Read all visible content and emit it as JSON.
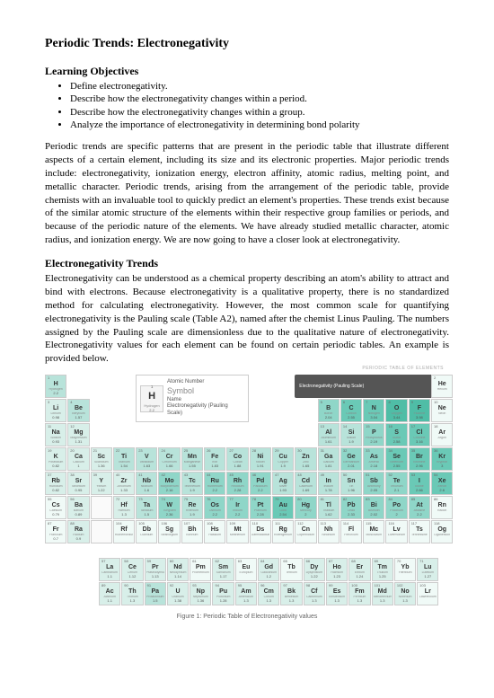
{
  "title": "Periodic Trends: Electronegativity",
  "objectives_heading": "Learning Objectives",
  "objectives": [
    "Define electronegativity.",
    "Describe how the electronegativity changes within a period.",
    "Describe how the electronegativity changes within a group.",
    "Analyze the importance of electronegativity in determining bond polarity"
  ],
  "para1": "Periodic trends are specific patterns that are present in the periodic table that illustrate different aspects of a certain element, including its size and its electronic properties. Major periodic trends include: electronegativity, ionization energy, electron affinity, atomic radius, melting point, and metallic character. Periodic trends, arising from the arrangement of the periodic table, provide chemists with an invaluable tool to quickly predict an element's properties. These trends exist because of the similar atomic structure of the elements within their respective group families or periods, and because of the periodic nature of the elements. We have already studied metallic character, atomic radius, and ionization energy. We are now going to have a closer look at electronegativity.",
  "trends_heading": "Electronegativity Trends",
  "para2": "Electronegativity can be understood as a chemical property describing an atom's ability to attract and bind with electrons. Because electronegativity is a qualitative property, there is no standardized method for calculating electronegativity. However, the most common scale for quantifying electronegativity is the Pauling scale (Table A2), named after the chemist Linus Pauling. The numbers assigned by the Pauling scale are dimensionless due to the qualitative nature of electronegativity. Electronegativity values for each element can be found on certain periodic tables. An example is provided below.",
  "legend": {
    "atomic_number_label": "Atomic Number",
    "symbol_label": "Symbol",
    "name_label": "Name",
    "en_label": "Electronegativity (Pauling Scale)",
    "sample": {
      "num": "1",
      "sym": "H",
      "name": "Hydrogen",
      "en": "2.2"
    }
  },
  "scale_label": "Electronegativity (Pauling Scale)",
  "scale_top": "PERIODIC TABLE OF ELEMENTS",
  "caption": "Figure 1: Periodic Table of Electronegativity values",
  "elements_main": [
    {
      "r": 1,
      "c": 1,
      "n": 1,
      "s": "H",
      "nm": "Hydrogen",
      "e": "2.2",
      "t": 2
    },
    {
      "r": 1,
      "c": 18,
      "n": 2,
      "s": "He",
      "nm": "Helium",
      "e": "",
      "t": 0
    },
    {
      "r": 2,
      "c": 1,
      "n": 3,
      "s": "Li",
      "nm": "Lithium",
      "e": "0.98",
      "t": 1
    },
    {
      "r": 2,
      "c": 2,
      "n": 4,
      "s": "Be",
      "nm": "Beryllium",
      "e": "1.57",
      "t": 2
    },
    {
      "r": 2,
      "c": 13,
      "n": 5,
      "s": "B",
      "nm": "Boron",
      "e": "2.04",
      "t": 3
    },
    {
      "r": 2,
      "c": 14,
      "n": 6,
      "s": "C",
      "nm": "Carbon",
      "e": "2.55",
      "t": 4
    },
    {
      "r": 2,
      "c": 15,
      "n": 7,
      "s": "N",
      "nm": "Nitrogen",
      "e": "3.04",
      "t": 4
    },
    {
      "r": 2,
      "c": 16,
      "n": 8,
      "s": "O",
      "nm": "Oxygen",
      "e": "3.44",
      "t": 5
    },
    {
      "r": 2,
      "c": 17,
      "n": 9,
      "s": "F",
      "nm": "Fluorine",
      "e": "3.98",
      "t": 5
    },
    {
      "r": 2,
      "c": 18,
      "n": 10,
      "s": "Ne",
      "nm": "Neon",
      "e": "",
      "t": 0
    },
    {
      "r": 3,
      "c": 1,
      "n": 11,
      "s": "Na",
      "nm": "Sodium",
      "e": "0.93",
      "t": 1
    },
    {
      "r": 3,
      "c": 2,
      "n": 12,
      "s": "Mg",
      "nm": "Magnesium",
      "e": "1.31",
      "t": 1
    },
    {
      "r": 3,
      "c": 13,
      "n": 13,
      "s": "Al",
      "nm": "Aluminium",
      "e": "1.61",
      "t": 2
    },
    {
      "r": 3,
      "c": 14,
      "n": 14,
      "s": "Si",
      "nm": "Silicon",
      "e": "1.9",
      "t": 2
    },
    {
      "r": 3,
      "c": 15,
      "n": 15,
      "s": "P",
      "nm": "Phosphorus",
      "e": "2.19",
      "t": 3
    },
    {
      "r": 3,
      "c": 16,
      "n": 16,
      "s": "S",
      "nm": "Sulfur",
      "e": "2.58",
      "t": 4
    },
    {
      "r": 3,
      "c": 17,
      "n": 17,
      "s": "Cl",
      "nm": "Chlorine",
      "e": "3.16",
      "t": 4
    },
    {
      "r": 3,
      "c": 18,
      "n": 18,
      "s": "Ar",
      "nm": "Argon",
      "e": "",
      "t": 0
    },
    {
      "r": 4,
      "c": 1,
      "n": 19,
      "s": "K",
      "nm": "Potassium",
      "e": "0.82",
      "t": 1
    },
    {
      "r": 4,
      "c": 2,
      "n": 20,
      "s": "Ca",
      "nm": "Calcium",
      "e": "1",
      "t": 1
    },
    {
      "r": 4,
      "c": 3,
      "n": 21,
      "s": "Sc",
      "nm": "Scandium",
      "e": "1.36",
      "t": 1
    },
    {
      "r": 4,
      "c": 4,
      "n": 22,
      "s": "Ti",
      "nm": "Titanium",
      "e": "1.54",
      "t": 2
    },
    {
      "r": 4,
      "c": 5,
      "n": 23,
      "s": "V",
      "nm": "Vanadium",
      "e": "1.63",
      "t": 2
    },
    {
      "r": 4,
      "c": 6,
      "n": 24,
      "s": "Cr",
      "nm": "Chromium",
      "e": "1.66",
      "t": 2
    },
    {
      "r": 4,
      "c": 7,
      "n": 25,
      "s": "Mn",
      "nm": "Manganese",
      "e": "1.55",
      "t": 2
    },
    {
      "r": 4,
      "c": 8,
      "n": 26,
      "s": "Fe",
      "nm": "Iron",
      "e": "1.83",
      "t": 2
    },
    {
      "r": 4,
      "c": 9,
      "n": 27,
      "s": "Co",
      "nm": "Cobalt",
      "e": "1.88",
      "t": 2
    },
    {
      "r": 4,
      "c": 10,
      "n": 28,
      "s": "Ni",
      "nm": "Nickel",
      "e": "1.91",
      "t": 2
    },
    {
      "r": 4,
      "c": 11,
      "n": 29,
      "s": "Cu",
      "nm": "Copper",
      "e": "1.9",
      "t": 2
    },
    {
      "r": 4,
      "c": 12,
      "n": 30,
      "s": "Zn",
      "nm": "Zinc",
      "e": "1.65",
      "t": 2
    },
    {
      "r": 4,
      "c": 13,
      "n": 31,
      "s": "Ga",
      "nm": "Gallium",
      "e": "1.81",
      "t": 2
    },
    {
      "r": 4,
      "c": 14,
      "n": 32,
      "s": "Ge",
      "nm": "Germanium",
      "e": "2.01",
      "t": 3
    },
    {
      "r": 4,
      "c": 15,
      "n": 33,
      "s": "As",
      "nm": "Arsenic",
      "e": "2.18",
      "t": 3
    },
    {
      "r": 4,
      "c": 16,
      "n": 34,
      "s": "Se",
      "nm": "Selenium",
      "e": "2.55",
      "t": 4
    },
    {
      "r": 4,
      "c": 17,
      "n": 35,
      "s": "Br",
      "nm": "Bromine",
      "e": "2.96",
      "t": 4
    },
    {
      "r": 4,
      "c": 18,
      "n": 36,
      "s": "Kr",
      "nm": "Krypton",
      "e": "3",
      "t": 4
    },
    {
      "r": 5,
      "c": 1,
      "n": 37,
      "s": "Rb",
      "nm": "Rubidium",
      "e": "0.82",
      "t": 1
    },
    {
      "r": 5,
      "c": 2,
      "n": 38,
      "s": "Sr",
      "nm": "Strontium",
      "e": "0.95",
      "t": 1
    },
    {
      "r": 5,
      "c": 3,
      "n": 39,
      "s": "Y",
      "nm": "Yttrium",
      "e": "1.22",
      "t": 1
    },
    {
      "r": 5,
      "c": 4,
      "n": 40,
      "s": "Zr",
      "nm": "Zirconium",
      "e": "1.33",
      "t": 1
    },
    {
      "r": 5,
      "c": 5,
      "n": 41,
      "s": "Nb",
      "nm": "Niobium",
      "e": "1.6",
      "t": 2
    },
    {
      "r": 5,
      "c": 6,
      "n": 42,
      "s": "Mo",
      "nm": "Molybdenum",
      "e": "2.16",
      "t": 3
    },
    {
      "r": 5,
      "c": 7,
      "n": 43,
      "s": "Tc",
      "nm": "Technetium",
      "e": "1.9",
      "t": 2
    },
    {
      "r": 5,
      "c": 8,
      "n": 44,
      "s": "Ru",
      "nm": "Ruthenium",
      "e": "2.2",
      "t": 3
    },
    {
      "r": 5,
      "c": 9,
      "n": 45,
      "s": "Rh",
      "nm": "Rhodium",
      "e": "2.28",
      "t": 3
    },
    {
      "r": 5,
      "c": 10,
      "n": 46,
      "s": "Pd",
      "nm": "Palladium",
      "e": "2.2",
      "t": 3
    },
    {
      "r": 5,
      "c": 11,
      "n": 47,
      "s": "Ag",
      "nm": "Silver",
      "e": "1.93",
      "t": 2
    },
    {
      "r": 5,
      "c": 12,
      "n": 48,
      "s": "Cd",
      "nm": "Cadmium",
      "e": "1.69",
      "t": 2
    },
    {
      "r": 5,
      "c": 13,
      "n": 49,
      "s": "In",
      "nm": "Indium",
      "e": "1.78",
      "t": 2
    },
    {
      "r": 5,
      "c": 14,
      "n": 50,
      "s": "Sn",
      "nm": "Tin",
      "e": "1.96",
      "t": 2
    },
    {
      "r": 5,
      "c": 15,
      "n": 51,
      "s": "Sb",
      "nm": "Antimony",
      "e": "2.05",
      "t": 3
    },
    {
      "r": 5,
      "c": 16,
      "n": 52,
      "s": "Te",
      "nm": "Tellurium",
      "e": "2.1",
      "t": 3
    },
    {
      "r": 5,
      "c": 17,
      "n": 53,
      "s": "I",
      "nm": "Iodine",
      "e": "2.66",
      "t": 4
    },
    {
      "r": 5,
      "c": 18,
      "n": 54,
      "s": "Xe",
      "nm": "Xenon",
      "e": "2.6",
      "t": 4
    },
    {
      "r": 6,
      "c": 1,
      "n": 55,
      "s": "Cs",
      "nm": "Caesium",
      "e": "0.79",
      "t": 0
    },
    {
      "r": 6,
      "c": 2,
      "n": 56,
      "s": "Ba",
      "nm": "Barium",
      "e": "0.89",
      "t": 1
    },
    {
      "r": 6,
      "c": 3,
      "n": 0,
      "s": "",
      "nm": "",
      "e": "",
      "t": 0
    },
    {
      "r": 6,
      "c": 4,
      "n": 72,
      "s": "Hf",
      "nm": "Hafnium",
      "e": "1.3",
      "t": 1
    },
    {
      "r": 6,
      "c": 5,
      "n": 73,
      "s": "Ta",
      "nm": "Tantalum",
      "e": "1.5",
      "t": 2
    },
    {
      "r": 6,
      "c": 6,
      "n": 74,
      "s": "W",
      "nm": "Tungsten",
      "e": "2.36",
      "t": 3
    },
    {
      "r": 6,
      "c": 7,
      "n": 75,
      "s": "Re",
      "nm": "Rhenium",
      "e": "1.9",
      "t": 2
    },
    {
      "r": 6,
      "c": 8,
      "n": 76,
      "s": "Os",
      "nm": "Osmium",
      "e": "2.2",
      "t": 3
    },
    {
      "r": 6,
      "c": 9,
      "n": 77,
      "s": "Ir",
      "nm": "Iridium",
      "e": "2.2",
      "t": 3
    },
    {
      "r": 6,
      "c": 10,
      "n": 78,
      "s": "Pt",
      "nm": "Platinum",
      "e": "2.28",
      "t": 3
    },
    {
      "r": 6,
      "c": 11,
      "n": 79,
      "s": "Au",
      "nm": "Gold",
      "e": "2.54",
      "t": 4
    },
    {
      "r": 6,
      "c": 12,
      "n": 80,
      "s": "Hg",
      "nm": "Mercury",
      "e": "2",
      "t": 3
    },
    {
      "r": 6,
      "c": 13,
      "n": 81,
      "s": "Tl",
      "nm": "Thallium",
      "e": "1.62",
      "t": 2
    },
    {
      "r": 6,
      "c": 14,
      "n": 82,
      "s": "Pb",
      "nm": "Lead",
      "e": "2.33",
      "t": 3
    },
    {
      "r": 6,
      "c": 15,
      "n": 83,
      "s": "Bi",
      "nm": "Bismuth",
      "e": "2.02",
      "t": 3
    },
    {
      "r": 6,
      "c": 16,
      "n": 84,
      "s": "Po",
      "nm": "Polonium",
      "e": "2",
      "t": 3
    },
    {
      "r": 6,
      "c": 17,
      "n": 85,
      "s": "At",
      "nm": "Astatine",
      "e": "2.2",
      "t": 3
    },
    {
      "r": 6,
      "c": 18,
      "n": 86,
      "s": "Rn",
      "nm": "Radon",
      "e": "",
      "t": 0
    },
    {
      "r": 7,
      "c": 1,
      "n": 87,
      "s": "Fr",
      "nm": "Francium",
      "e": "0.7",
      "t": 0
    },
    {
      "r": 7,
      "c": 2,
      "n": 88,
      "s": "Ra",
      "nm": "Radium",
      "e": "0.9",
      "t": 1
    },
    {
      "r": 7,
      "c": 3,
      "n": 0,
      "s": "",
      "nm": "",
      "e": "",
      "t": 0
    },
    {
      "r": 7,
      "c": 4,
      "n": 104,
      "s": "Rf",
      "nm": "Rutherfordium",
      "e": "",
      "t": 0
    },
    {
      "r": 7,
      "c": 5,
      "n": 105,
      "s": "Db",
      "nm": "Dubnium",
      "e": "",
      "t": 0
    },
    {
      "r": 7,
      "c": 6,
      "n": 106,
      "s": "Sg",
      "nm": "Seaborgium",
      "e": "",
      "t": 0
    },
    {
      "r": 7,
      "c": 7,
      "n": 107,
      "s": "Bh",
      "nm": "Bohrium",
      "e": "",
      "t": 0
    },
    {
      "r": 7,
      "c": 8,
      "n": 108,
      "s": "Hs",
      "nm": "Hassium",
      "e": "",
      "t": 0
    },
    {
      "r": 7,
      "c": 9,
      "n": 109,
      "s": "Mt",
      "nm": "Meitnerium",
      "e": "",
      "t": 0
    },
    {
      "r": 7,
      "c": 10,
      "n": 110,
      "s": "Ds",
      "nm": "Darmstadtium",
      "e": "",
      "t": 0
    },
    {
      "r": 7,
      "c": 11,
      "n": 111,
      "s": "Rg",
      "nm": "Roentgenium",
      "e": "",
      "t": 0
    },
    {
      "r": 7,
      "c": 12,
      "n": 112,
      "s": "Cn",
      "nm": "Copernicium",
      "e": "",
      "t": 0
    },
    {
      "r": 7,
      "c": 13,
      "n": 113,
      "s": "Nh",
      "nm": "Nihonium",
      "e": "",
      "t": 0
    },
    {
      "r": 7,
      "c": 14,
      "n": 114,
      "s": "Fl",
      "nm": "Flerovium",
      "e": "",
      "t": 0
    },
    {
      "r": 7,
      "c": 15,
      "n": 115,
      "s": "Mc",
      "nm": "Moscovium",
      "e": "",
      "t": 0
    },
    {
      "r": 7,
      "c": 16,
      "n": 116,
      "s": "Lv",
      "nm": "Livermorium",
      "e": "",
      "t": 0
    },
    {
      "r": 7,
      "c": 17,
      "n": 117,
      "s": "Ts",
      "nm": "Tennessine",
      "e": "",
      "t": 0
    },
    {
      "r": 7,
      "c": 18,
      "n": 118,
      "s": "Og",
      "nm": "Oganesson",
      "e": "",
      "t": 0
    }
  ],
  "elements_f": [
    {
      "r": 1,
      "c": 1,
      "n": 57,
      "s": "La",
      "nm": "Lanthanum",
      "e": "1.1",
      "t": 1
    },
    {
      "r": 1,
      "c": 2,
      "n": 58,
      "s": "Ce",
      "nm": "Cerium",
      "e": "1.12",
      "t": 1
    },
    {
      "r": 1,
      "c": 3,
      "n": 59,
      "s": "Pr",
      "nm": "Praseodymium",
      "e": "1.13",
      "t": 1
    },
    {
      "r": 1,
      "c": 4,
      "n": 60,
      "s": "Nd",
      "nm": "Neodymium",
      "e": "1.14",
      "t": 1
    },
    {
      "r": 1,
      "c": 5,
      "n": 61,
      "s": "Pm",
      "nm": "Promethium",
      "e": "",
      "t": 0
    },
    {
      "r": 1,
      "c": 6,
      "n": 62,
      "s": "Sm",
      "nm": "Samarium",
      "e": "1.17",
      "t": 1
    },
    {
      "r": 1,
      "c": 7,
      "n": 63,
      "s": "Eu",
      "nm": "Europium",
      "e": "",
      "t": 0
    },
    {
      "r": 1,
      "c": 8,
      "n": 64,
      "s": "Gd",
      "nm": "Gadolinium",
      "e": "1.2",
      "t": 1
    },
    {
      "r": 1,
      "c": 9,
      "n": 65,
      "s": "Tb",
      "nm": "Terbium",
      "e": "",
      "t": 0
    },
    {
      "r": 1,
      "c": 10,
      "n": 66,
      "s": "Dy",
      "nm": "Dysprosium",
      "e": "1.22",
      "t": 1
    },
    {
      "r": 1,
      "c": 11,
      "n": 67,
      "s": "Ho",
      "nm": "Holmium",
      "e": "1.23",
      "t": 1
    },
    {
      "r": 1,
      "c": 12,
      "n": 68,
      "s": "Er",
      "nm": "Erbium",
      "e": "1.24",
      "t": 1
    },
    {
      "r": 1,
      "c": 13,
      "n": 69,
      "s": "Tm",
      "nm": "Thulium",
      "e": "1.25",
      "t": 1
    },
    {
      "r": 1,
      "c": 14,
      "n": 70,
      "s": "Yb",
      "nm": "Ytterbium",
      "e": "",
      "t": 0
    },
    {
      "r": 1,
      "c": 15,
      "n": 71,
      "s": "Lu",
      "nm": "Lutetium",
      "e": "1.27",
      "t": 1
    },
    {
      "r": 2,
      "c": 1,
      "n": 89,
      "s": "Ac",
      "nm": "Actinium",
      "e": "1.1",
      "t": 1
    },
    {
      "r": 2,
      "c": 2,
      "n": 90,
      "s": "Th",
      "nm": "Thorium",
      "e": "1.3",
      "t": 1
    },
    {
      "r": 2,
      "c": 3,
      "n": 91,
      "s": "Pa",
      "nm": "Protactinium",
      "e": "1.5",
      "t": 2
    },
    {
      "r": 2,
      "c": 4,
      "n": 92,
      "s": "U",
      "nm": "Uranium",
      "e": "1.38",
      "t": 1
    },
    {
      "r": 2,
      "c": 5,
      "n": 93,
      "s": "Np",
      "nm": "Neptunium",
      "e": "1.36",
      "t": 1
    },
    {
      "r": 2,
      "c": 6,
      "n": 94,
      "s": "Pu",
      "nm": "Plutonium",
      "e": "1.28",
      "t": 1
    },
    {
      "r": 2,
      "c": 7,
      "n": 95,
      "s": "Am",
      "nm": "Americium",
      "e": "1.3",
      "t": 1
    },
    {
      "r": 2,
      "c": 8,
      "n": 96,
      "s": "Cm",
      "nm": "Curium",
      "e": "1.3",
      "t": 1
    },
    {
      "r": 2,
      "c": 9,
      "n": 97,
      "s": "Bk",
      "nm": "Berkelium",
      "e": "1.3",
      "t": 1
    },
    {
      "r": 2,
      "c": 10,
      "n": 98,
      "s": "Cf",
      "nm": "Californium",
      "e": "1.3",
      "t": 1
    },
    {
      "r": 2,
      "c": 11,
      "n": 99,
      "s": "Es",
      "nm": "Einsteinium",
      "e": "1.3",
      "t": 1
    },
    {
      "r": 2,
      "c": 12,
      "n": 100,
      "s": "Fm",
      "nm": "Fermium",
      "e": "1.3",
      "t": 1
    },
    {
      "r": 2,
      "c": 13,
      "n": 101,
      "s": "Md",
      "nm": "Mendelevium",
      "e": "1.3",
      "t": 1
    },
    {
      "r": 2,
      "c": 14,
      "n": 102,
      "s": "No",
      "nm": "Nobelium",
      "e": "1.3",
      "t": 1
    },
    {
      "r": 2,
      "c": 15,
      "n": 103,
      "s": "Lr",
      "nm": "Lawrencium",
      "e": "",
      "t": 0
    }
  ],
  "teal_map": [
    "teal-0",
    "teal-1",
    "teal-2",
    "teal-3",
    "teal-4",
    "teal-5"
  ]
}
